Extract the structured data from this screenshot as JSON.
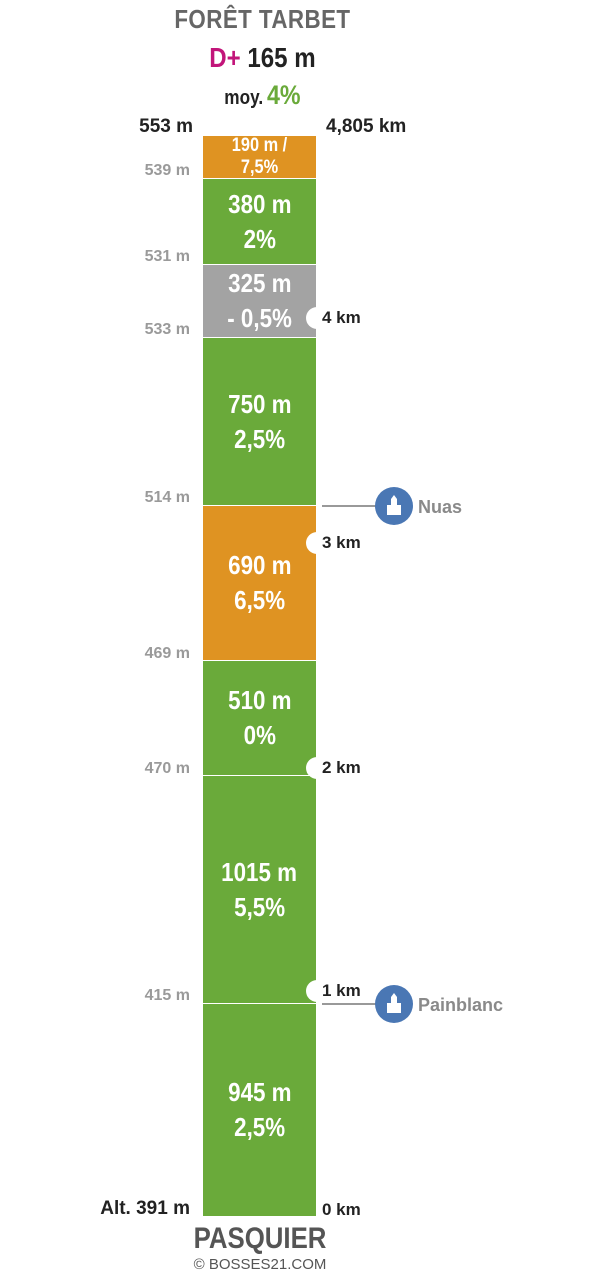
{
  "header": {
    "title": "FORÊT TARBET",
    "dplus_label": "D+",
    "dplus_value": "165 m",
    "avg_label": "moy.",
    "avg_value": "4%"
  },
  "top": {
    "altitude": "553 m",
    "distance": "4,805 km"
  },
  "segments": [
    {
      "length": "190 m / 7,5%",
      "grade": "",
      "color": "#df9322"
    },
    {
      "length": "380 m",
      "grade": "2%",
      "color": "#6aaa3a"
    },
    {
      "length": "325 m",
      "grade": "- 0,5%",
      "color": "#a3a3a3"
    },
    {
      "length": "750 m",
      "grade": "2,5%",
      "color": "#6aaa3a"
    },
    {
      "length": "690 m",
      "grade": "6,5%",
      "color": "#df9322"
    },
    {
      "length": "510 m",
      "grade": "0%",
      "color": "#6aaa3a"
    },
    {
      "length": "1015 m",
      "grade": "5,5%",
      "color": "#6aaa3a"
    },
    {
      "length": "945 m",
      "grade": "2,5%",
      "color": "#6aaa3a"
    }
  ],
  "altitudes": [
    "539 m",
    "531 m",
    "533 m",
    "514 m",
    "469 m",
    "470 m",
    "415 m"
  ],
  "base_altitude": "Alt. 391 m",
  "km_markers": [
    "4 km",
    "3 km",
    "2 km",
    "1 km",
    "0 km"
  ],
  "waypoints": [
    {
      "name": "Nuas",
      "icon": "church-icon"
    },
    {
      "name": "Painblanc",
      "icon": "church-icon"
    }
  ],
  "footer": {
    "start": "PASQUIER",
    "credit": "© BOSSES21.COM"
  }
}
